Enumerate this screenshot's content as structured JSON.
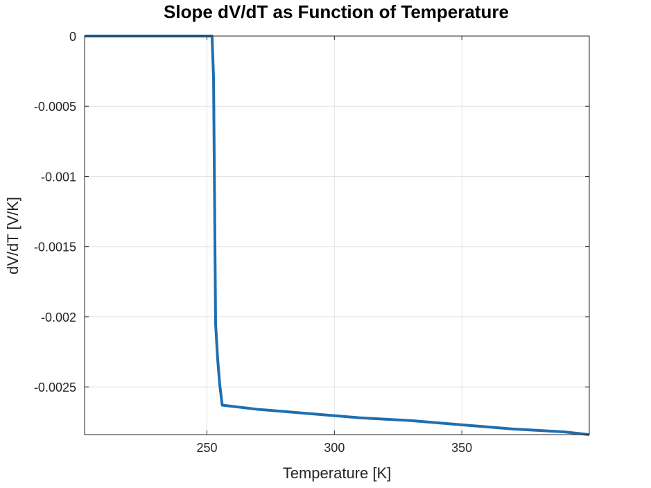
{
  "chart_data": {
    "type": "line",
    "title": "Slope dV/dT as Function of Temperature",
    "xlabel": "Temperature [K]",
    "ylabel": "dV/dT [V/K]",
    "xlim": [
      202,
      400
    ],
    "ylim": [
      -0.00284,
      0
    ],
    "xticks": [
      250,
      300,
      350
    ],
    "xtick_labels": [
      "250",
      "300",
      "350"
    ],
    "yticks": [
      0,
      -0.0005,
      -0.001,
      -0.0015,
      -0.002,
      -0.0025
    ],
    "ytick_labels": [
      "0",
      "-0.0005",
      "-0.001",
      "-0.0015",
      "-0.002",
      "-0.0025"
    ],
    "grid": true,
    "series": [
      {
        "color": "#1f6fb0",
        "x": [
          202,
          252.0,
          252.6,
          253.4,
          254.2,
          255.0,
          256.0,
          270,
          290,
          310,
          330,
          350,
          370,
          390,
          400
        ],
        "y": [
          0,
          0,
          -0.0003,
          -0.00205,
          -0.0023,
          -0.00248,
          -0.00263,
          -0.00266,
          -0.00269,
          -0.00272,
          -0.00274,
          -0.00277,
          -0.0028,
          -0.00282,
          -0.00284
        ]
      }
    ]
  }
}
